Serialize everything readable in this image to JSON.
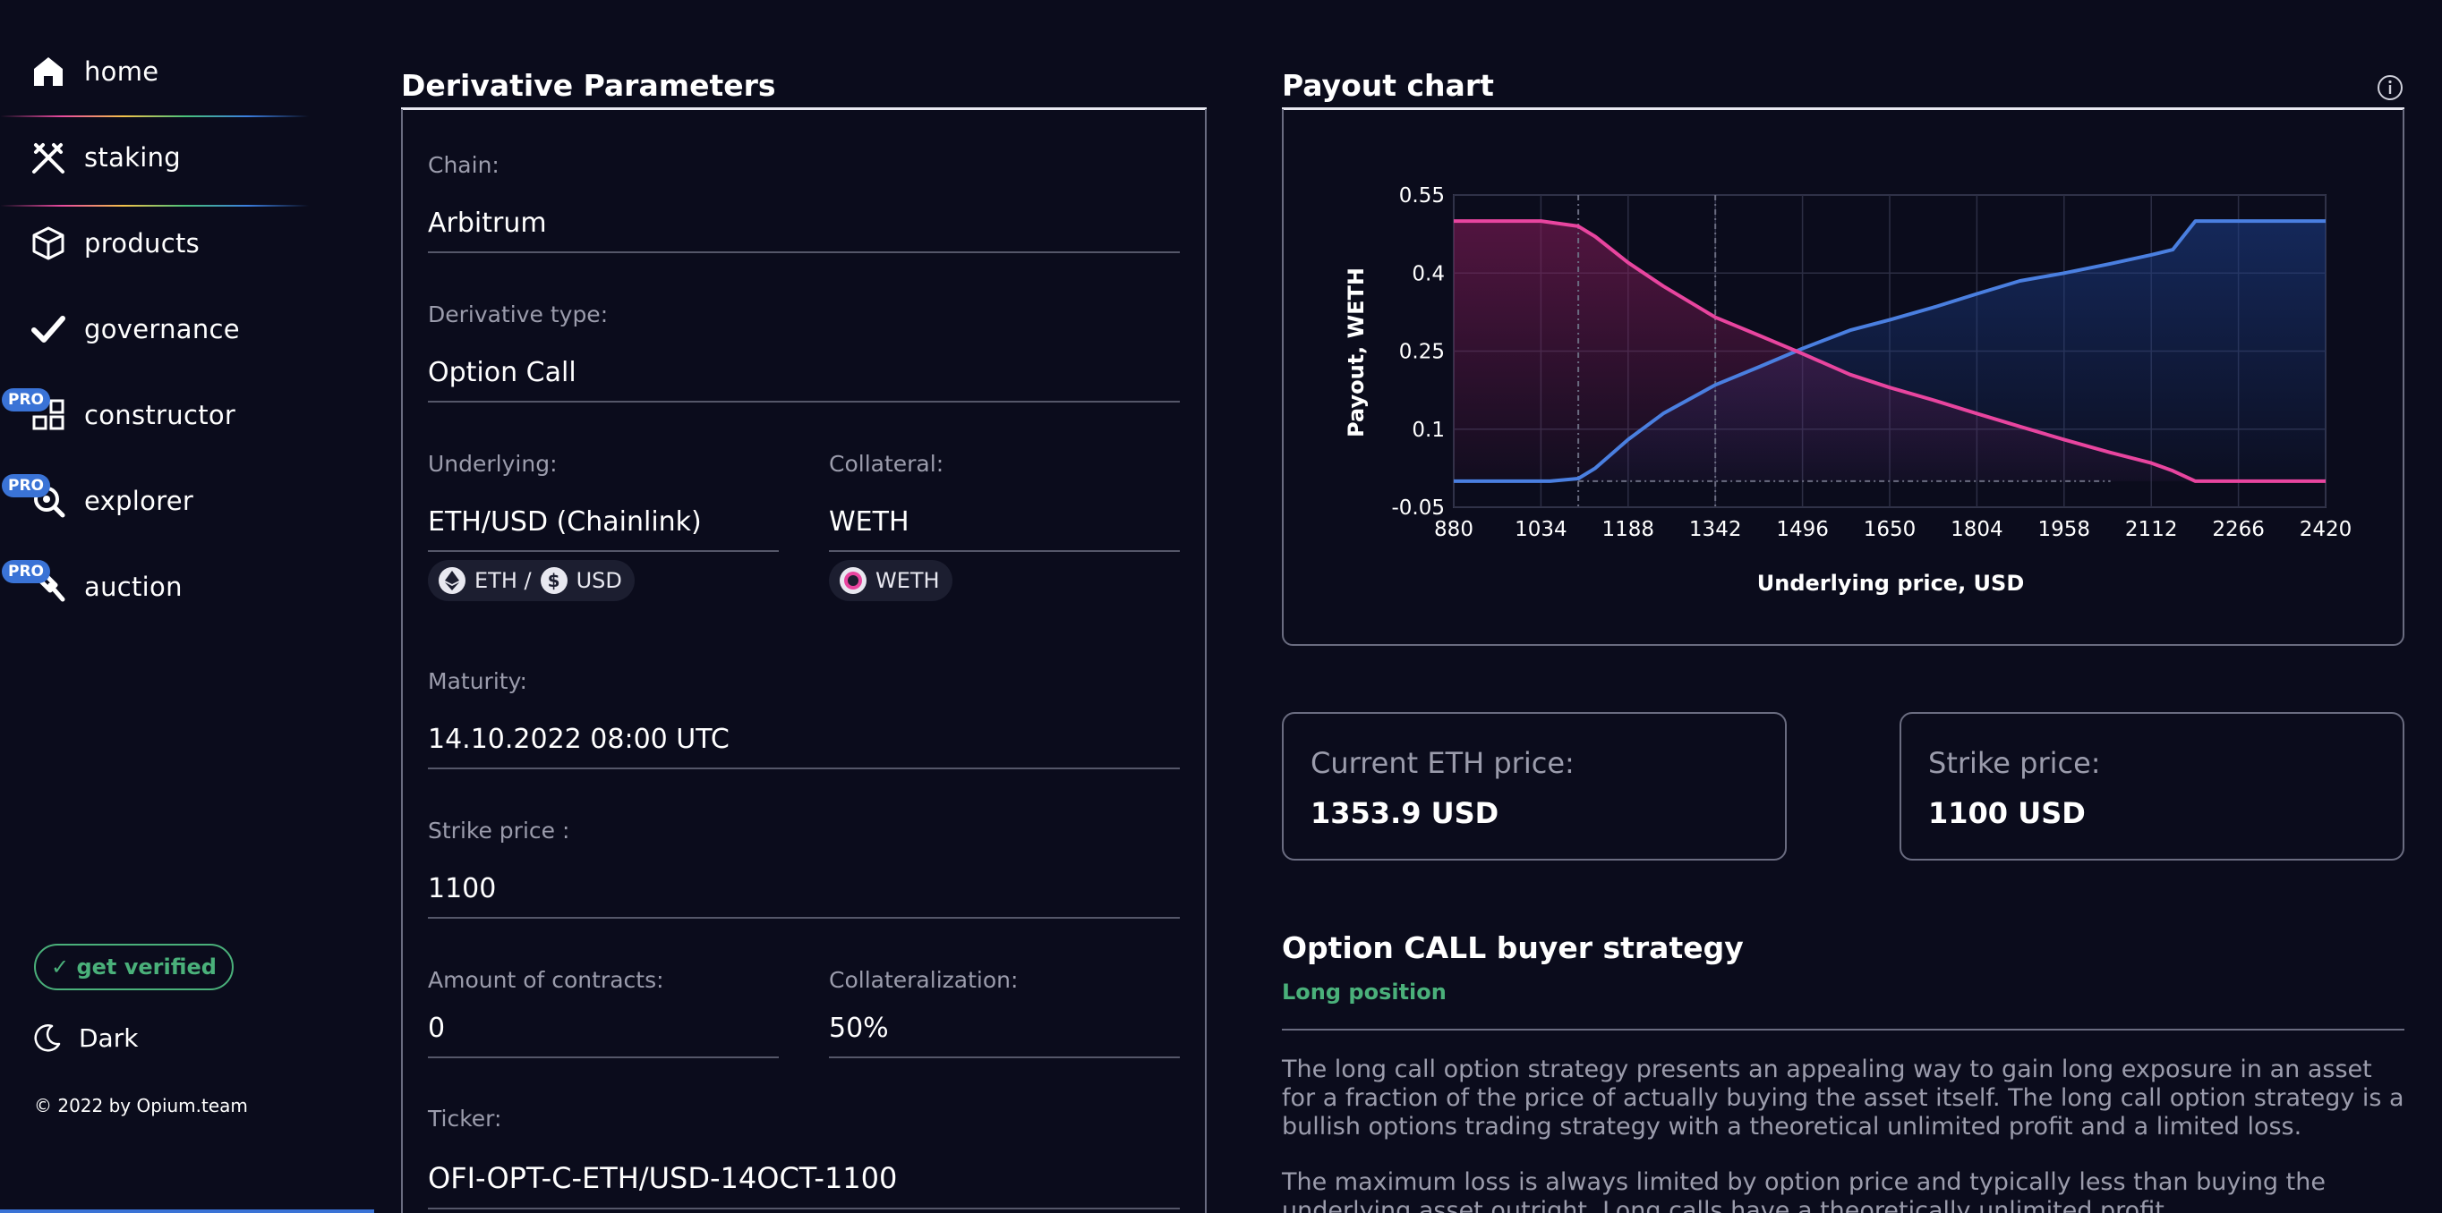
{
  "sidebar": {
    "items": [
      {
        "label": "home",
        "icon": "home-icon"
      },
      {
        "label": "staking",
        "icon": "staking-icon"
      },
      {
        "label": "products",
        "icon": "box-icon"
      },
      {
        "label": "governance",
        "icon": "check-icon"
      },
      {
        "label": "constructor",
        "icon": "grid-icon",
        "badge": "PRO"
      },
      {
        "label": "explorer",
        "icon": "magnifier-icon",
        "badge": "PRO"
      },
      {
        "label": "auction",
        "icon": "gavel-icon",
        "badge": "PRO"
      }
    ],
    "get_verified": "✓ get verified",
    "theme_label": "Dark",
    "copyright": "© 2022 by Opium.team"
  },
  "params": {
    "title": "Derivative Parameters",
    "chain_label": "Chain:",
    "chain_value": "Arbitrum",
    "type_label": "Derivative type:",
    "type_value": "Option Call",
    "underlying_label": "Underlying:",
    "underlying_value": "ETH/USD (Chainlink)",
    "underlying_chip_a": "ETH /",
    "underlying_chip_b": "USD",
    "collateral_label": "Collateral:",
    "collateral_value": "WETH",
    "collateral_chip": "WETH",
    "maturity_label": "Maturity:",
    "maturity_value": "14.10.2022 08:00 UTC",
    "strike_label": "Strike price :",
    "strike_value": "1100",
    "amount_label": "Amount of contracts:",
    "amount_value": "0",
    "collateralization_label": "Collateralization:",
    "collateralization_value": "50%",
    "ticker_label": "Ticker:",
    "ticker_value": "OFI-OPT-C-ETH/USD-14OCT-1100"
  },
  "chart_panel": {
    "title": "Payout chart"
  },
  "chart_data": {
    "type": "line",
    "xlabel": "Underlying price, USD",
    "ylabel": "Payout, WETH",
    "x_ticks": [
      880,
      1034,
      1188,
      1342,
      1496,
      1650,
      1804,
      1958,
      2112,
      2266,
      2420
    ],
    "y_ticks": [
      -0.05,
      0.1,
      0.25,
      0.4,
      0.55
    ],
    "xlim": [
      880,
      2420
    ],
    "ylim": [
      -0.05,
      0.55
    ],
    "grid": true,
    "reference_lines_x": [
      1100,
      1342
    ],
    "series": [
      {
        "color": "#4a7fe0",
        "x": [
          880,
          1050,
          1100,
          1130,
          1188,
          1250,
          1342,
          1420,
          1496,
          1580,
          1650,
          1730,
          1804,
          1880,
          1958,
          2040,
          2112,
          2150,
          2190,
          2266,
          2420
        ],
        "y": [
          0.0,
          0.0,
          0.005,
          0.025,
          0.08,
          0.13,
          0.185,
          0.22,
          0.255,
          0.29,
          0.31,
          0.335,
          0.36,
          0.385,
          0.4,
          0.418,
          0.435,
          0.445,
          0.5,
          0.5,
          0.5
        ]
      },
      {
        "color": "#e8459f",
        "x": [
          880,
          1034,
          1100,
          1130,
          1188,
          1250,
          1342,
          1420,
          1496,
          1580,
          1650,
          1730,
          1804,
          1880,
          1958,
          2040,
          2112,
          2150,
          2190,
          2266,
          2420
        ],
        "y": [
          0.5,
          0.5,
          0.49,
          0.47,
          0.42,
          0.375,
          0.315,
          0.28,
          0.245,
          0.205,
          0.18,
          0.155,
          0.13,
          0.105,
          0.08,
          0.055,
          0.035,
          0.02,
          0.0,
          0.0,
          0.0
        ]
      }
    ]
  },
  "cards": {
    "current_label": "Current ETH price:",
    "current_value": "1353.9 USD",
    "strike_label": "Strike price:",
    "strike_value": "1100 USD"
  },
  "strategy": {
    "title": "Option CALL buyer strategy",
    "subtitle": "Long position",
    "p1": "The long call option strategy presents an appealing way to gain long exposure in an asset for a fraction of the price of actually buying the asset itself. The long call option strategy is a bullish options trading strategy with a theoretical unlimited profit and a limited loss.",
    "p2": "The maximum loss is always limited by option price and typically less than buying the underlying asset outright. Long calls have a theoretically unlimited profit."
  },
  "colors": {
    "accent_green": "#4ab07a",
    "accent_blue": "#3a73d6",
    "series_blue": "#4a7fe0",
    "series_pink": "#e8459f"
  }
}
